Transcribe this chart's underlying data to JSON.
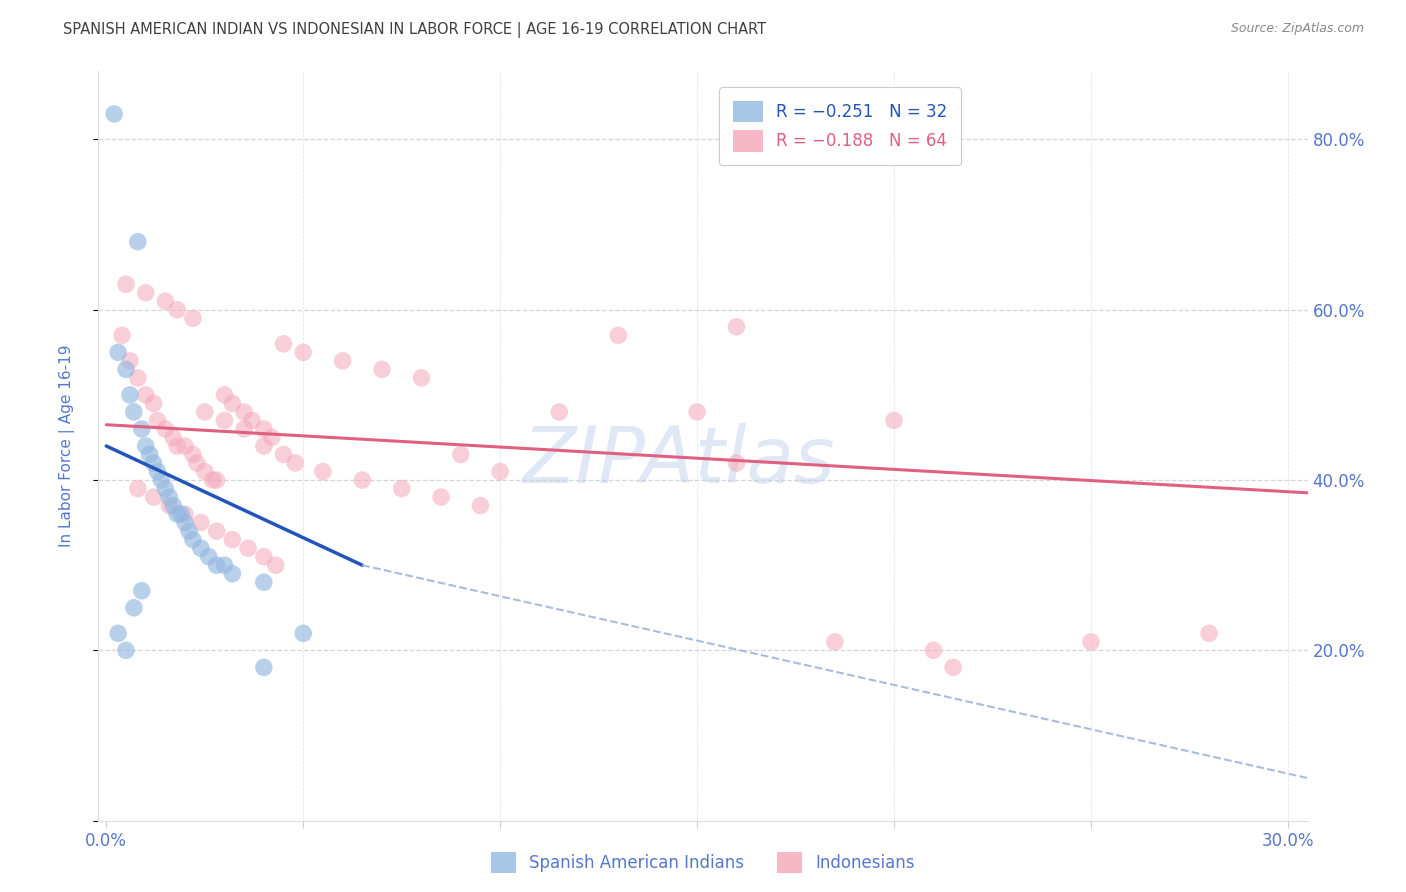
{
  "title": "SPANISH AMERICAN INDIAN VS INDONESIAN IN LABOR FORCE | AGE 16-19 CORRELATION CHART",
  "source": "Source: ZipAtlas.com",
  "ylabel": "In Labor Force | Age 16-19",
  "x_ticks": [
    0.0,
    0.05,
    0.1,
    0.15,
    0.2,
    0.25,
    0.3
  ],
  "y_ticks": [
    0.0,
    0.2,
    0.4,
    0.6,
    0.8
  ],
  "xlim": [
    -0.002,
    0.305
  ],
  "ylim": [
    0.0,
    0.88
  ],
  "blue_scatter_x": [
    0.002,
    0.008,
    0.003,
    0.005,
    0.006,
    0.007,
    0.009,
    0.01,
    0.011,
    0.012,
    0.013,
    0.014,
    0.015,
    0.016,
    0.017,
    0.018,
    0.019,
    0.02,
    0.021,
    0.022,
    0.024,
    0.026,
    0.028,
    0.03,
    0.032,
    0.003,
    0.005,
    0.007,
    0.009,
    0.04,
    0.05,
    0.04
  ],
  "blue_scatter_y": [
    0.83,
    0.68,
    0.55,
    0.53,
    0.5,
    0.48,
    0.46,
    0.44,
    0.43,
    0.42,
    0.41,
    0.4,
    0.39,
    0.38,
    0.37,
    0.36,
    0.36,
    0.35,
    0.34,
    0.33,
    0.32,
    0.31,
    0.3,
    0.3,
    0.29,
    0.22,
    0.2,
    0.25,
    0.27,
    0.28,
    0.22,
    0.18
  ],
  "pink_scatter_x": [
    0.004,
    0.006,
    0.008,
    0.01,
    0.012,
    0.013,
    0.015,
    0.017,
    0.018,
    0.02,
    0.022,
    0.023,
    0.025,
    0.027,
    0.028,
    0.03,
    0.032,
    0.035,
    0.037,
    0.04,
    0.042,
    0.045,
    0.05,
    0.06,
    0.07,
    0.08,
    0.09,
    0.1,
    0.115,
    0.13,
    0.15,
    0.16,
    0.2,
    0.215,
    0.25,
    0.005,
    0.01,
    0.015,
    0.018,
    0.022,
    0.025,
    0.03,
    0.035,
    0.04,
    0.045,
    0.008,
    0.012,
    0.016,
    0.02,
    0.024,
    0.028,
    0.032,
    0.036,
    0.04,
    0.043,
    0.048,
    0.055,
    0.065,
    0.075,
    0.085,
    0.095,
    0.16,
    0.185,
    0.21,
    0.28
  ],
  "pink_scatter_y": [
    0.57,
    0.54,
    0.52,
    0.5,
    0.49,
    0.47,
    0.46,
    0.45,
    0.44,
    0.44,
    0.43,
    0.42,
    0.41,
    0.4,
    0.4,
    0.5,
    0.49,
    0.48,
    0.47,
    0.46,
    0.45,
    0.56,
    0.55,
    0.54,
    0.53,
    0.52,
    0.43,
    0.41,
    0.48,
    0.57,
    0.48,
    0.42,
    0.47,
    0.18,
    0.21,
    0.63,
    0.62,
    0.61,
    0.6,
    0.59,
    0.48,
    0.47,
    0.46,
    0.44,
    0.43,
    0.39,
    0.38,
    0.37,
    0.36,
    0.35,
    0.34,
    0.33,
    0.32,
    0.31,
    0.3,
    0.42,
    0.41,
    0.4,
    0.39,
    0.38,
    0.37,
    0.58,
    0.21,
    0.2,
    0.22
  ],
  "blue_trend_x": [
    0.0,
    0.065
  ],
  "blue_trend_y": [
    0.44,
    0.3
  ],
  "pink_trend_x": [
    0.0,
    0.305
  ],
  "pink_trend_y": [
    0.465,
    0.385
  ],
  "dashed_trend_x": [
    0.065,
    0.305
  ],
  "dashed_trend_y": [
    0.3,
    0.05
  ],
  "watermark": "ZIPAtlas",
  "watermark_color": "#b8cce8",
  "blue_color": "#92b8e0",
  "pink_color": "#f4a7b9",
  "blue_line_color": "#2255bb",
  "pink_line_color": "#e06080",
  "dashed_line_color": "#aabbdd",
  "background_color": "#ffffff",
  "grid_color": "#cccccc",
  "title_color": "#404040",
  "source_color": "#888888",
  "axis_label_color": "#5577cc",
  "tick_label_color": "#5577cc"
}
